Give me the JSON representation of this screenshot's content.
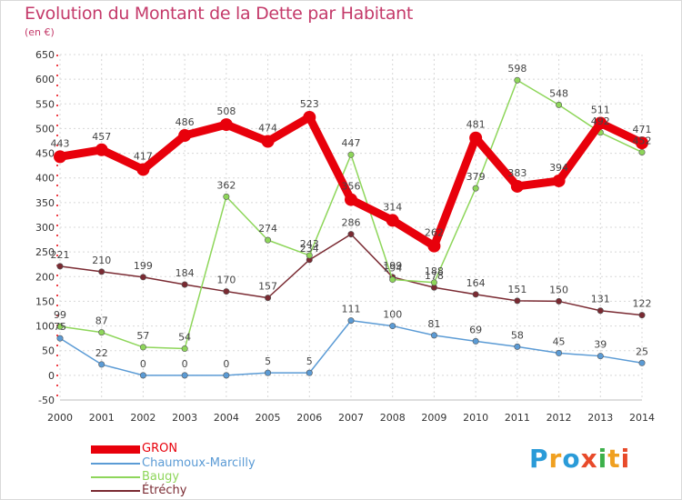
{
  "title": "Evolution du Montant de la Dette par Habitant",
  "unit": "(en €)",
  "logo": {
    "text": "Proxiti",
    "colors": [
      "#2a9bd8",
      "#f0a020",
      "#2a9bd8",
      "#e84a2a",
      "#3cb04a",
      "#f0a020",
      "#e84a2a"
    ]
  },
  "chart_data": {
    "type": "line",
    "title": "Evolution du Montant de la Dette par Habitant",
    "ylabel": "(en €)",
    "xlabel": "",
    "x": [
      "2000",
      "2001",
      "2002",
      "2003",
      "2004",
      "2005",
      "2006",
      "2007",
      "2008",
      "2009",
      "2010",
      "2011",
      "2012",
      "2013",
      "2014"
    ],
    "ylim": [
      -50,
      650
    ],
    "yticks": [
      -50,
      0,
      50,
      100,
      150,
      200,
      250,
      300,
      350,
      400,
      450,
      500,
      550,
      600,
      650
    ],
    "grid": true,
    "legend": "bottom-left",
    "series": [
      {
        "name": "GRON",
        "color": "#e8000b",
        "values": [
          443,
          457,
          417,
          486,
          508,
          474,
          523,
          356,
          314,
          262,
          481,
          383,
          394,
          511,
          471
        ]
      },
      {
        "name": "Chaumoux-Marcilly",
        "color": "#5b9bd5",
        "values": [
          75,
          22,
          0,
          0,
          0,
          5,
          5,
          111,
          100,
          81,
          69,
          58,
          45,
          39,
          25
        ]
      },
      {
        "name": "Baugy",
        "color": "#8ed65a",
        "values": [
          99,
          87,
          57,
          54,
          362,
          274,
          243,
          447,
          194,
          188,
          379,
          598,
          548,
          492,
          452
        ]
      },
      {
        "name": "Étréchy",
        "color": "#7a2a32",
        "values": [
          221,
          210,
          199,
          184,
          170,
          157,
          234,
          286,
          199,
          178,
          164,
          151,
          150,
          131,
          122
        ]
      }
    ]
  }
}
